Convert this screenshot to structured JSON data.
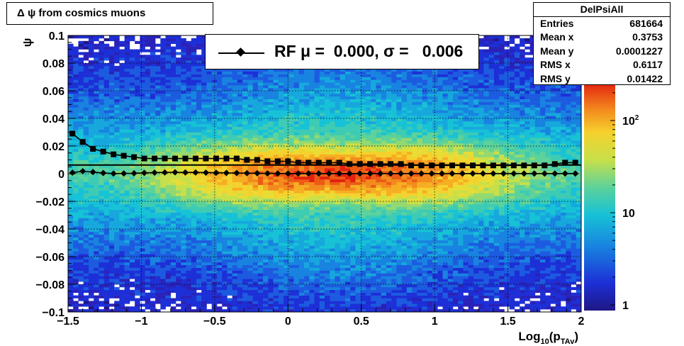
{
  "title_box": {
    "text": "Δ ψ from cosmics muons"
  },
  "stats": {
    "name": "DelPsiAll",
    "rows": [
      {
        "label": "Entries",
        "value": "681664"
      },
      {
        "label": "Mean x",
        "value": "0.3753"
      },
      {
        "label": "Mean y",
        "value": "0.0001227"
      },
      {
        "label": "RMS x",
        "value": "0.6117"
      },
      {
        "label": "RMS y",
        "value": "0.01422"
      }
    ]
  },
  "legend": {
    "text": "RF μ =  0.000, σ =   0.006"
  },
  "colors": {
    "line": "#000000",
    "marker": "#000000"
  },
  "chart_data": {
    "type": "heatmap",
    "xlabel": "Log10(pTAv)",
    "ylabel": "ψ",
    "xlim": [
      -1.5,
      2
    ],
    "ylim": [
      -0.1,
      0.1
    ],
    "x_ticks": [
      "−1.5",
      "−1",
      "−0.5",
      "0",
      "0.5",
      "1",
      "1.5",
      "2"
    ],
    "y_ticks": [
      "0.1",
      "0.08",
      "0.06",
      "0.04",
      "0.02",
      "0",
      "−0.02",
      "−0.04",
      "−0.06",
      "−0.08",
      "−0.1"
    ],
    "z_scale": "log",
    "z_ticks": [
      "1",
      "10",
      "10²"
    ],
    "grid": true,
    "series": [
      {
        "name": "RF",
        "marker": "diamond",
        "x": [
          -1.47,
          -1.4,
          -1.33,
          -1.26,
          -1.19,
          -1.12,
          -1.05,
          -0.98,
          -0.91,
          -0.84,
          -0.77,
          -0.7,
          -0.63,
          -0.56,
          -0.49,
          -0.42,
          -0.35,
          -0.28,
          -0.21,
          -0.14,
          -0.07,
          0.0,
          0.07,
          0.14,
          0.21,
          0.28,
          0.35,
          0.42,
          0.49,
          0.56,
          0.63,
          0.7,
          0.77,
          0.84,
          0.91,
          0.98,
          1.05,
          1.12,
          1.19,
          1.26,
          1.33,
          1.4,
          1.47,
          1.54,
          1.61,
          1.68,
          1.75,
          1.82,
          1.89,
          1.96
        ],
        "y": [
          0.0008,
          0.0018,
          0.0012,
          0.0005,
          0.0001,
          0.0002,
          0.0003,
          0.0006,
          0.0008,
          0.0009,
          0.001,
          0.0009,
          0.0009,
          0.0008,
          0.0007,
          0.0006,
          0.0005,
          0.0004,
          0.0003,
          0.0002,
          0.0002,
          0.0001,
          0.0001,
          0.0001,
          0.0001,
          0.0001,
          0.0001,
          0.0001,
          0.0001,
          0.0001,
          0.0001,
          0.0001,
          0.0001,
          0.0001,
          0.0001,
          0.0001,
          0.0001,
          0.0001,
          0.0001,
          0.0001,
          0.0001,
          0.0001,
          0.0001,
          0.0001,
          0.0001,
          0.0001,
          0.0001,
          0.0001,
          0.0001,
          0.0001
        ]
      },
      {
        "name": "σ",
        "marker": "square",
        "x": [
          -1.47,
          -1.4,
          -1.33,
          -1.26,
          -1.19,
          -1.12,
          -1.05,
          -0.98,
          -0.91,
          -0.84,
          -0.77,
          -0.7,
          -0.63,
          -0.56,
          -0.49,
          -0.42,
          -0.35,
          -0.28,
          -0.21,
          -0.14,
          -0.07,
          0.0,
          0.07,
          0.14,
          0.21,
          0.28,
          0.35,
          0.42,
          0.49,
          0.56,
          0.63,
          0.7,
          0.77,
          0.84,
          0.91,
          0.98,
          1.05,
          1.12,
          1.19,
          1.26,
          1.33,
          1.4,
          1.47,
          1.54,
          1.61,
          1.68,
          1.75,
          1.82,
          1.89,
          1.96
        ],
        "y": [
          0.029,
          0.023,
          0.018,
          0.016,
          0.014,
          0.013,
          0.012,
          0.011,
          0.011,
          0.011,
          0.011,
          0.011,
          0.011,
          0.011,
          0.011,
          0.011,
          0.011,
          0.01,
          0.01,
          0.009,
          0.009,
          0.009,
          0.008,
          0.008,
          0.008,
          0.008,
          0.008,
          0.007,
          0.007,
          0.007,
          0.007,
          0.007,
          0.007,
          0.006,
          0.006,
          0.006,
          0.006,
          0.006,
          0.006,
          0.006,
          0.006,
          0.006,
          0.006,
          0.006,
          0.006,
          0.006,
          0.006,
          0.007,
          0.008,
          0.008
        ]
      }
    ],
    "reference_line_y": 0.0063
  }
}
